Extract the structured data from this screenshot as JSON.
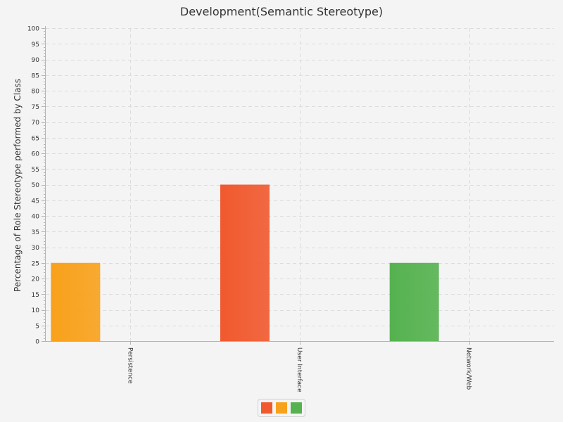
{
  "chart_data": {
    "type": "bar",
    "title": "Development(Semantic Stereotype)",
    "xlabel": "",
    "ylabel": "Percentage of Role Stereotype performed by Class",
    "categories": [
      "Persistence",
      "User Interface",
      "Network/Web"
    ],
    "values": [
      25,
      50,
      25
    ],
    "ylim": [
      0,
      100
    ],
    "ytick_step": 5,
    "grid": true,
    "legend": "bottom-center",
    "bar_colors": [
      "#f8a11b",
      "#f1592e",
      "#55b24f"
    ]
  },
  "legend": {
    "colors": [
      "#f1592e",
      "#f8a11b",
      "#55b24f"
    ]
  }
}
